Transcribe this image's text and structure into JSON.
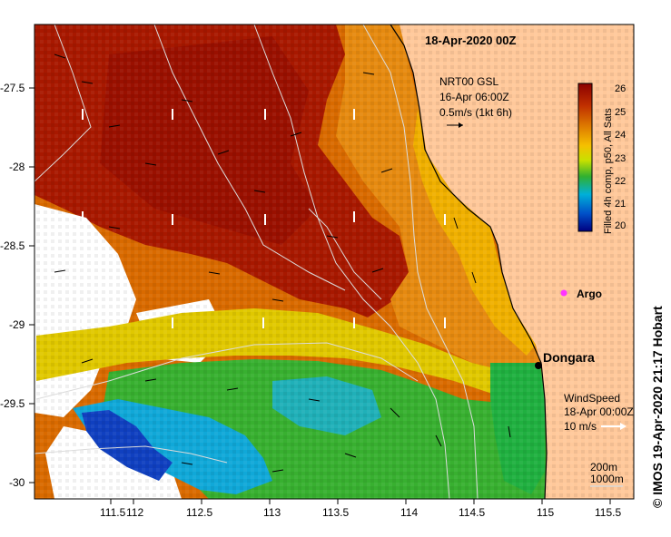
{
  "map": {
    "title": "18-Apr-2020 00Z",
    "x_ticks": [
      "111.5",
      "112",
      "112.5",
      "113",
      "113.5",
      "114",
      "114.5",
      "115",
      "115.5"
    ],
    "y_ticks": [
      "-27.5",
      "-28",
      "-28.5",
      "-29",
      "-29.5",
      "-30"
    ],
    "current_legend": {
      "line1": "NRT00 GSL",
      "line2": "16-Apr 06:00Z",
      "line3": "0.5m/s (1kt 6h)"
    },
    "wind_legend": {
      "line1": "WindSpeed",
      "line2": "18-Apr 00:00Z",
      "line3": "10 m/s"
    },
    "contours": {
      "line1": "200m",
      "line2": "1000m"
    },
    "places": {
      "town": "Dongara",
      "float": "Argo"
    },
    "credit": "© IMOS 19-Apr-2020 21:17 Hobart"
  },
  "colorbar": {
    "title": "Filled 4h comp, p50, All Sats",
    "ticks": [
      "26",
      "25",
      "24",
      "23",
      "22",
      "21",
      "20"
    ],
    "colors": [
      "#8b0000",
      "#b22000",
      "#d96a00",
      "#f5a800",
      "#d8e000",
      "#20b030",
      "#00a8d8",
      "#0040c0",
      "#000080"
    ]
  },
  "colors": {
    "land": "#ffc89a",
    "warm": "#a81800",
    "cool": "#30b030"
  }
}
